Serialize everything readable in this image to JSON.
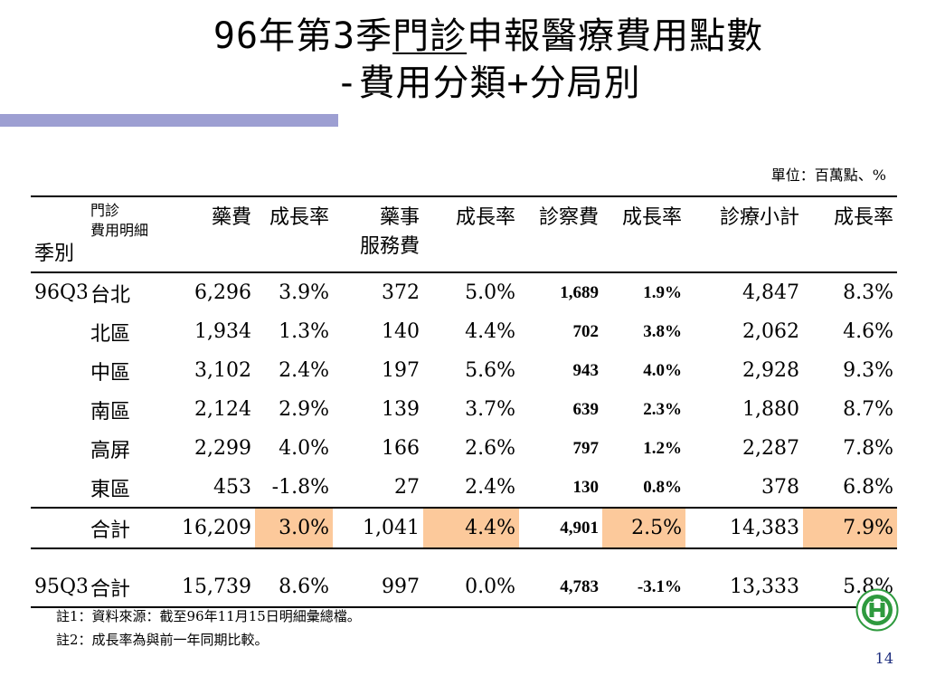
{
  "title_line1_a": "96年第3季",
  "title_line1_u": "門診",
  "title_line1_b": "申報醫療費用點數",
  "title_line2": "-費用分類+分局別",
  "unit": "單位：百萬點、%",
  "header": {
    "season": "季別",
    "branch_line1": "門診",
    "branch_line2": "費用明細",
    "drug": "藥費",
    "drug_growth": "成長率",
    "pharm_line1": "藥事",
    "pharm_line2": "服務費",
    "pharm_growth": "成長率",
    "diag": "診察費",
    "diag_growth": "成長率",
    "subtotal": "診療小計",
    "subtotal_growth": "成長率"
  },
  "rows_96q3": {
    "season": "96Q3",
    "items": [
      {
        "branch": "台北",
        "drug": "6,296",
        "drug_g": "3.9%",
        "pharm": "372",
        "pharm_g": "5.0%",
        "diag": "1,689",
        "diag_g": "1.9%",
        "sub": "4,847",
        "sub_g": "8.3%"
      },
      {
        "branch": "北區",
        "drug": "1,934",
        "drug_g": "1.3%",
        "pharm": "140",
        "pharm_g": "4.4%",
        "diag": "702",
        "diag_g": "3.8%",
        "sub": "2,062",
        "sub_g": "4.6%"
      },
      {
        "branch": "中區",
        "drug": "3,102",
        "drug_g": "2.4%",
        "pharm": "197",
        "pharm_g": "5.6%",
        "diag": "943",
        "diag_g": "4.0%",
        "sub": "2,928",
        "sub_g": "9.3%"
      },
      {
        "branch": "南區",
        "drug": "2,124",
        "drug_g": "2.9%",
        "pharm": "139",
        "pharm_g": "3.7%",
        "diag": "639",
        "diag_g": "2.3%",
        "sub": "1,880",
        "sub_g": "8.7%"
      },
      {
        "branch": "高屏",
        "drug": "2,299",
        "drug_g": "4.0%",
        "pharm": "166",
        "pharm_g": "2.6%",
        "diag": "797",
        "diag_g": "1.2%",
        "sub": "2,287",
        "sub_g": "7.8%"
      },
      {
        "branch": "東區",
        "drug": "453",
        "drug_g": "-1.8%",
        "pharm": "27",
        "pharm_g": "2.4%",
        "diag": "130",
        "diag_g": "0.8%",
        "sub": "378",
        "sub_g": "6.8%"
      }
    ],
    "total": {
      "branch": "合計",
      "drug": "16,209",
      "drug_g": "3.0%",
      "pharm": "1,041",
      "pharm_g": "4.4%",
      "diag": "4,901",
      "diag_g": "2.5%",
      "sub": "14,383",
      "sub_g": "7.9%"
    }
  },
  "rows_95q3": {
    "season": "95Q3",
    "total": {
      "branch": "合計",
      "drug": "15,739",
      "drug_g": "8.6%",
      "pharm": "997",
      "pharm_g": "0.0%",
      "diag": "4,783",
      "diag_g": "-3.1%",
      "sub": "13,333",
      "sub_g": "5.8%"
    }
  },
  "notes": [
    "註1：資料來源：截至96年11月15日明細彙總檔。",
    "註2：成長率為與前一年同期比較。"
  ],
  "highlight_color": "#fcc99b",
  "accent_color": "#9d9fd2",
  "logo_icon": "nhi-logo-icon",
  "page_number": "14"
}
